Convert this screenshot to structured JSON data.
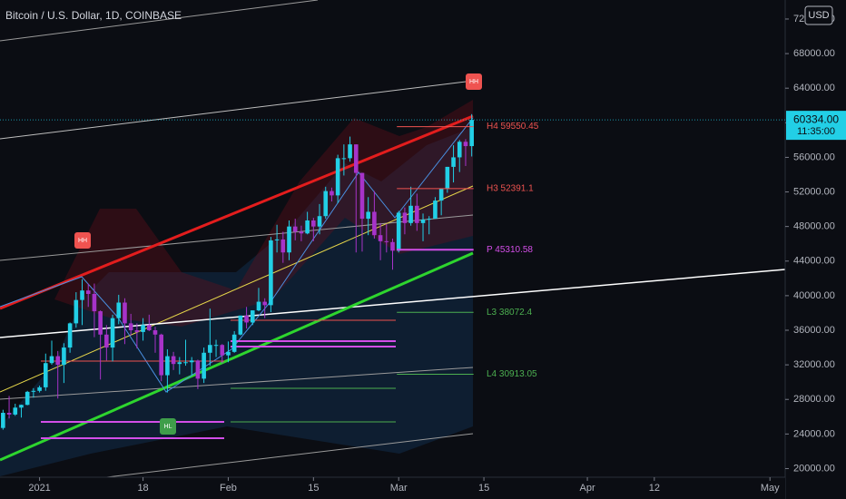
{
  "chart_data": {
    "type": "candlestick",
    "title": "Bitcoin / U.S. Dollar, 1D, COINBASE",
    "currency": "USD",
    "x": [
      "2020-12-26",
      "2020-12-27",
      "2020-12-28",
      "2020-12-29",
      "2020-12-30",
      "2020-12-31",
      "2021-01-01",
      "2021-01-02",
      "2021-01-03",
      "2021-01-04",
      "2021-01-05",
      "2021-01-06",
      "2021-01-07",
      "2021-01-08",
      "2021-01-09",
      "2021-01-10",
      "2021-01-11",
      "2021-01-12",
      "2021-01-13",
      "2021-01-14",
      "2021-01-15",
      "2021-01-16",
      "2021-01-17",
      "2021-01-18",
      "2021-01-19",
      "2021-01-20",
      "2021-01-21",
      "2021-01-22",
      "2021-01-23",
      "2021-01-24",
      "2021-01-25",
      "2021-01-26",
      "2021-01-27",
      "2021-01-28",
      "2021-01-29",
      "2021-01-30",
      "2021-01-31",
      "2021-02-01",
      "2021-02-02",
      "2021-02-03",
      "2021-02-04",
      "2021-02-05",
      "2021-02-06",
      "2021-02-07",
      "2021-02-08",
      "2021-02-09",
      "2021-02-10",
      "2021-02-11",
      "2021-02-12",
      "2021-02-13",
      "2021-02-14",
      "2021-02-15",
      "2021-02-16",
      "2021-02-17",
      "2021-02-18",
      "2021-02-19",
      "2021-02-20",
      "2021-02-21",
      "2021-02-22",
      "2021-02-23",
      "2021-02-24",
      "2021-02-25",
      "2021-02-26",
      "2021-02-27",
      "2021-02-28",
      "2021-03-01",
      "2021-03-02",
      "2021-03-03",
      "2021-03-04",
      "2021-03-05",
      "2021-03-06",
      "2021-03-07",
      "2021-03-08",
      "2021-03-09",
      "2021-03-10",
      "2021-03-11",
      "2021-03-12",
      "2021-03-13"
    ],
    "open": [
      24700,
      26450,
      26250,
      27050,
      27370,
      28880,
      28990,
      29400,
      32200,
      33000,
      32000,
      34000,
      36800,
      39500,
      40600,
      40200,
      38200,
      35500,
      34000,
      37400,
      39200,
      36800,
      36000,
      35800,
      36600,
      36000,
      35500,
      30800,
      33000,
      32100,
      32300,
      32300,
      32500,
      30400,
      33400,
      34300,
      34300,
      33100,
      33500,
      35500,
      37700,
      36900,
      38300,
      39300,
      38900,
      46400,
      46500,
      45000,
      48000,
      47400,
      47200,
      48700,
      48000,
      49200,
      52100,
      51600,
      55900,
      55900,
      57500,
      54200,
      48900,
      49700,
      47000,
      46300,
      46200,
      45200,
      49600,
      48400,
      50400,
      48400,
      48800,
      48900,
      51000,
      52400,
      54900,
      56000,
      57800,
      57300
    ],
    "high": [
      26800,
      28400,
      27500,
      27400,
      28990,
      29300,
      29600,
      33300,
      34800,
      33600,
      34500,
      36900,
      40400,
      41900,
      41400,
      41400,
      38300,
      36600,
      37800,
      40100,
      39700,
      37900,
      36800,
      37400,
      37800,
      36400,
      35600,
      33800,
      33500,
      32900,
      34900,
      32900,
      32600,
      34000,
      38500,
      34900,
      34400,
      34700,
      35900,
      37700,
      38700,
      38300,
      40900,
      39700,
      46800,
      48200,
      47400,
      48700,
      48900,
      48100,
      49700,
      49000,
      50600,
      52600,
      52500,
      56300,
      57500,
      58400,
      57500,
      54200,
      51400,
      52100,
      48400,
      48300,
      46600,
      49800,
      50200,
      52600,
      51800,
      49500,
      49200,
      51400,
      52400,
      54900,
      57400,
      58000,
      58100,
      61000
    ],
    "low": [
      24500,
      25800,
      26100,
      25900,
      27320,
      28200,
      28800,
      29000,
      32000,
      28100,
      29900,
      33400,
      36300,
      36600,
      38700,
      35200,
      30300,
      32500,
      32400,
      36700,
      34400,
      35400,
      33900,
      34800,
      35900,
      33400,
      30100,
      28800,
      31400,
      30900,
      31900,
      30800,
      29200,
      29900,
      31900,
      32900,
      32200,
      32300,
      33400,
      35400,
      36200,
      36600,
      38200,
      37400,
      38100,
      45000,
      43800,
      44100,
      46400,
      46300,
      47100,
      46300,
      47100,
      48900,
      50900,
      50700,
      53900,
      55500,
      45000,
      45100,
      47000,
      46600,
      44100,
      45000,
      43000,
      45000,
      47100,
      48100,
      47500,
      46300,
      47100,
      48900,
      49300,
      51900,
      53100,
      54300,
      55000,
      56100
    ],
    "close": [
      26450,
      26250,
      27050,
      27370,
      28880,
      28990,
      29400,
      32200,
      33000,
      32000,
      34000,
      36800,
      39500,
      40600,
      40200,
      38200,
      35500,
      34000,
      37400,
      39200,
      36800,
      36000,
      35800,
      36600,
      36000,
      35500,
      30800,
      33000,
      32100,
      32300,
      32300,
      32500,
      30400,
      33400,
      34300,
      34300,
      33100,
      33500,
      35500,
      37700,
      36900,
      38300,
      39300,
      38900,
      46400,
      46500,
      45000,
      48000,
      47400,
      47200,
      48700,
      48000,
      49200,
      52100,
      51600,
      55900,
      55900,
      57500,
      54200,
      48900,
      49700,
      47000,
      46300,
      46200,
      45200,
      49600,
      48400,
      50400,
      48400,
      48800,
      48900,
      51000,
      52400,
      54900,
      56000,
      57800,
      57300,
      60334
    ],
    "up_color": "#22cfe6",
    "down_color": "#a733c9",
    "xlim": [
      "2020-12-26",
      "2021-05-03"
    ],
    "xticks": [
      {
        "value": "2021-01-01",
        "label": "2021"
      },
      {
        "value": "2021-01-18",
        "label": "18"
      },
      {
        "value": "2021-02-01",
        "label": "Feb"
      },
      {
        "value": "2021-02-15",
        "label": "15"
      },
      {
        "value": "2021-03-01",
        "label": "Mar"
      },
      {
        "value": "2021-03-15",
        "label": "15"
      },
      {
        "value": "2021-04-01",
        "label": "Apr"
      },
      {
        "value": "2021-04-12",
        "label": "12"
      },
      {
        "value": "2021-05-01",
        "label": "May"
      }
    ],
    "ylim": [
      19000,
      74200
    ],
    "yticks": [
      {
        "value": 20000,
        "label": "20000.00"
      },
      {
        "value": 24000,
        "label": "24000.00"
      },
      {
        "value": 28000,
        "label": "28000.00"
      },
      {
        "value": 32000,
        "label": "32000.00"
      },
      {
        "value": 36000,
        "label": "36000.00"
      },
      {
        "value": 40000,
        "label": "40000.00"
      },
      {
        "value": 44000,
        "label": "44000.00"
      },
      {
        "value": 48000,
        "label": "48000.00"
      },
      {
        "value": 52000,
        "label": "52000.00"
      },
      {
        "value": 56000,
        "label": "56000.00"
      },
      {
        "value": 60000,
        "label": "60000.00"
      },
      {
        "value": 64000,
        "label": "64000.00"
      },
      {
        "value": 68000,
        "label": "68000.00"
      },
      {
        "value": 72000,
        "label": "72000.00"
      }
    ],
    "last_price": {
      "value": 60334,
      "label": "60334.00"
    },
    "countdown": "11:35:00",
    "levels": [
      {
        "label": "H4 59550.45",
        "value": 59550.45,
        "color": "#ef5350"
      },
      {
        "label": "H3 52391.1",
        "value": 52391.1,
        "color": "#ef5350"
      },
      {
        "label": "P 45310.58",
        "value": 45310.58,
        "color": "#d34ee8"
      },
      {
        "label": "L3 38072.4",
        "value": 38072.4,
        "color": "#4caf50"
      },
      {
        "label": "L4 30913.05",
        "value": 30913.05,
        "color": "#4caf50"
      }
    ],
    "markers": [
      "HH",
      "HH",
      "HL"
    ]
  }
}
